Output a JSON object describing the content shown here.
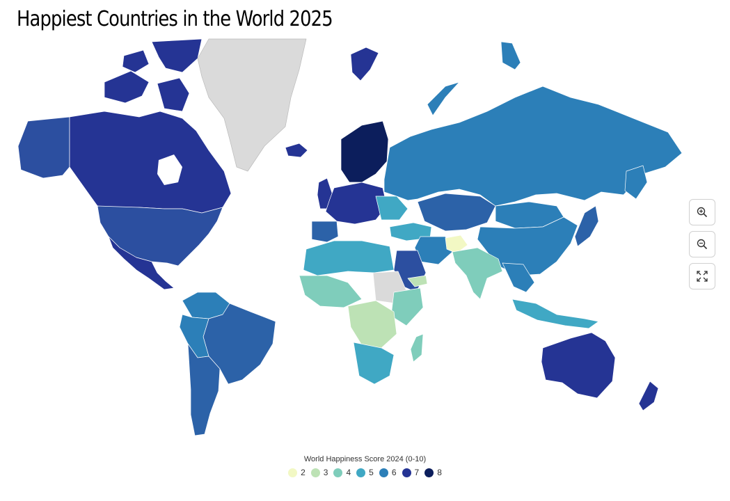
{
  "title": "Happiest Countries in the World 2025",
  "legend": {
    "title": "World Happiness Score 2024 (0-10)",
    "items": [
      {
        "label": "2",
        "color": "#f2f8c4"
      },
      {
        "label": "3",
        "color": "#bde2b5"
      },
      {
        "label": "4",
        "color": "#7fcdbb"
      },
      {
        "label": "5",
        "color": "#40a8c4"
      },
      {
        "label": "6",
        "color": "#2c7fb8"
      },
      {
        "label": "7",
        "color": "#253494"
      },
      {
        "label": "8",
        "color": "#0c1e5c"
      }
    ],
    "no_data_color": "#dadada"
  },
  "controls": {
    "zoom_in": "zoom-in-icon",
    "zoom_out": "zoom-out-icon",
    "reset": "fullscreen-icon"
  }
}
